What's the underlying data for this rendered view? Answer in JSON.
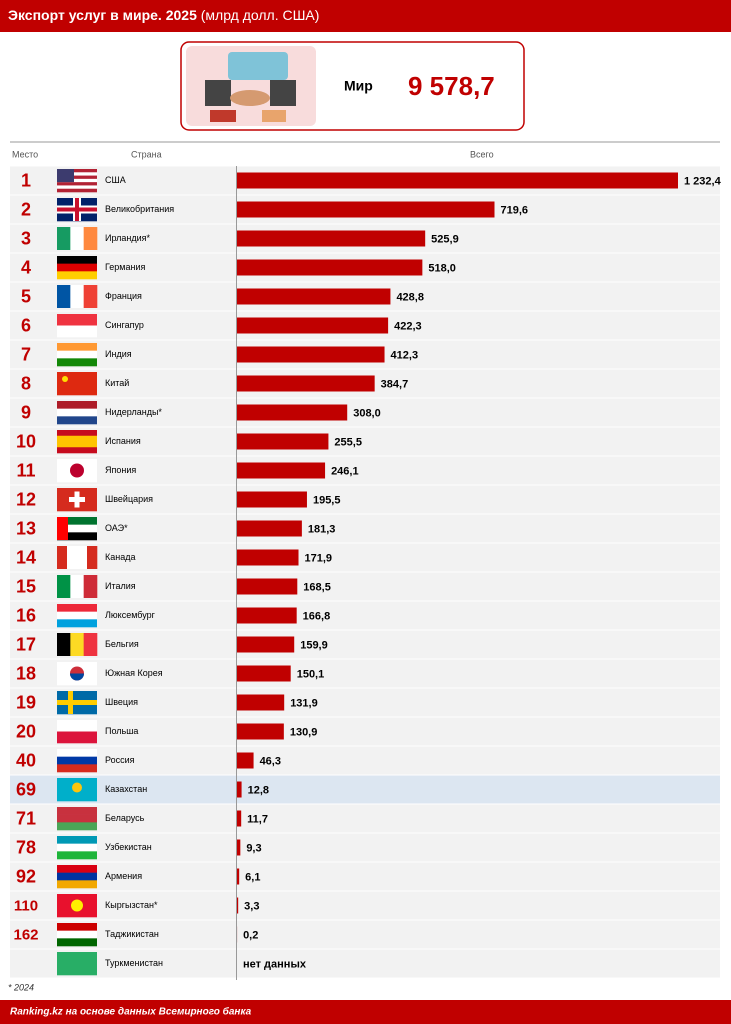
{
  "chart_data": {
    "type": "bar",
    "title": "Экспорт услуг в мире. 2025",
    "title_units": "(млрд долл. США)",
    "total_label": "Мир",
    "total_value": 9578.7,
    "total_value_label": "9 578,7",
    "rank_header": "Место",
    "country_header": "Страна",
    "value_header": "Всего",
    "ranks": [
      1,
      2,
      3,
      4,
      5,
      6,
      7,
      8,
      9,
      10,
      11,
      12,
      13,
      14,
      15,
      16,
      17,
      18,
      19,
      20,
      40,
      69,
      71,
      78,
      92,
      110,
      162,
      null
    ],
    "categories": [
      "США",
      "Великобритания",
      "Ирландия*",
      "Германия",
      "Франция",
      "Сингапур",
      "Индия",
      "Китай",
      "Нидерланды*",
      "Испания",
      "Япония",
      "Швейцария",
      "ОАЭ*",
      "Канада",
      "Италия",
      "Люксембург",
      "Бельгия",
      "Южная Корея",
      "Швеция",
      "Польша",
      "Россия",
      "Казахстан",
      "Беларусь",
      "Узбекистан",
      "Армения",
      "Кыргызстан*",
      "Таджикистан",
      "Туркменистан"
    ],
    "values": [
      1232.4,
      719.6,
      525.9,
      518.0,
      428.8,
      422.3,
      412.3,
      384.7,
      308.0,
      255.5,
      246.1,
      195.5,
      181.3,
      171.9,
      168.5,
      166.8,
      159.9,
      150.1,
      131.9,
      130.9,
      46.3,
      12.8,
      11.7,
      9.3,
      6.1,
      3.3,
      0.2,
      null
    ],
    "value_labels": [
      "1 232,4",
      "719,6",
      "525,9",
      "518,0",
      "428,8",
      "422,3",
      "412,3",
      "384,7",
      "308,0",
      "255,5",
      "246,1",
      "195,5",
      "181,3",
      "171,9",
      "168,5",
      "166,8",
      "159,9",
      "150,1",
      "131,9",
      "130,9",
      "46,3",
      "12,8",
      "11,7",
      "9,3",
      "6,1",
      "3,3",
      "0,2",
      "нет данных"
    ],
    "color": "#c00000",
    "note": "* 2024",
    "source": "Ranking.kz на основе данных Всемирного банка"
  }
}
